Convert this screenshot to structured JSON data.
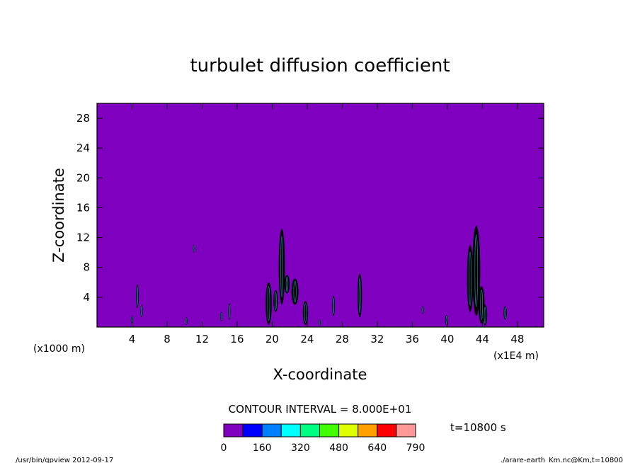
{
  "chart_data": {
    "type": "heatmap",
    "title": "turbulet diffusion coefficient",
    "xlabel": "X-coordinate",
    "ylabel": "Z-coordinate",
    "x_unit_left": "(x1000 m)",
    "x_unit_right": "(x1E4 m)",
    "xlim": [
      0,
      51
    ],
    "ylim": [
      0,
      30
    ],
    "x_ticks": [
      4,
      8,
      12,
      16,
      20,
      24,
      28,
      32,
      36,
      40,
      44,
      48
    ],
    "y_ticks": [
      4,
      8,
      12,
      16,
      20,
      24,
      28
    ],
    "background_color": "#7F00BF",
    "contour_interval_text": "CONTOUR INTERVAL = 8.000E+01",
    "time_text": "t=10800 s",
    "colorbar": {
      "colors": [
        "#7F00BF",
        "#0000FF",
        "#0080FF",
        "#00FFFF",
        "#00FF80",
        "#40FF00",
        "#E0FF00",
        "#FFA000",
        "#FF0000",
        "#FF9999"
      ],
      "labels": [
        "0",
        "160",
        "320",
        "480",
        "640",
        "790"
      ]
    },
    "features": [
      {
        "x": 4.6,
        "z0": 2.5,
        "z1": 5.8,
        "w": 0.15
      },
      {
        "x": 5.1,
        "z0": 1.3,
        "z1": 3.0,
        "w": 0.12
      },
      {
        "x": 4.0,
        "z0": 0.5,
        "z1": 1.5,
        "w": 0.1
      },
      {
        "x": 10.2,
        "z0": 0.3,
        "z1": 1.3,
        "w": 0.08
      },
      {
        "x": 11.1,
        "z0": 10.0,
        "z1": 11.0,
        "w": 0.08
      },
      {
        "x": 14.2,
        "z0": 0.8,
        "z1": 2.0,
        "w": 0.1
      },
      {
        "x": 15.1,
        "z0": 1.0,
        "z1": 3.2,
        "w": 0.12
      },
      {
        "x": 19.6,
        "z0": 0.3,
        "z1": 6.0,
        "w": 0.35
      },
      {
        "x": 20.4,
        "z0": 2.0,
        "z1": 5.0,
        "w": 0.25
      },
      {
        "x": 21.1,
        "z0": 3.0,
        "z1": 13.2,
        "w": 0.35
      },
      {
        "x": 21.7,
        "z0": 4.5,
        "z1": 7.0,
        "w": 0.3
      },
      {
        "x": 22.6,
        "z0": 3.0,
        "z1": 6.5,
        "w": 0.4
      },
      {
        "x": 23.8,
        "z0": 0.3,
        "z1": 3.5,
        "w": 0.3
      },
      {
        "x": 25.4,
        "z0": 0.2,
        "z1": 1.0,
        "w": 0.1
      },
      {
        "x": 27.0,
        "z0": 1.5,
        "z1": 4.2,
        "w": 0.15
      },
      {
        "x": 30.0,
        "z0": 1.3,
        "z1": 7.2,
        "w": 0.25
      },
      {
        "x": 37.2,
        "z0": 1.8,
        "z1": 2.8,
        "w": 0.08
      },
      {
        "x": 39.9,
        "z0": 0.3,
        "z1": 1.6,
        "w": 0.15
      },
      {
        "x": 42.6,
        "z0": 2.0,
        "z1": 11.0,
        "w": 0.35
      },
      {
        "x": 43.3,
        "z0": 1.5,
        "z1": 13.6,
        "w": 0.45
      },
      {
        "x": 43.9,
        "z0": 0.5,
        "z1": 5.5,
        "w": 0.35
      },
      {
        "x": 44.3,
        "z0": 0.2,
        "z1": 3.0,
        "w": 0.25
      },
      {
        "x": 46.6,
        "z0": 1.0,
        "z1": 2.8,
        "w": 0.18
      }
    ]
  },
  "footer": {
    "left": "/usr/bin/gpview  2012-09-17",
    "right": "./arare-earth_Km.nc@Km,t=10800"
  }
}
